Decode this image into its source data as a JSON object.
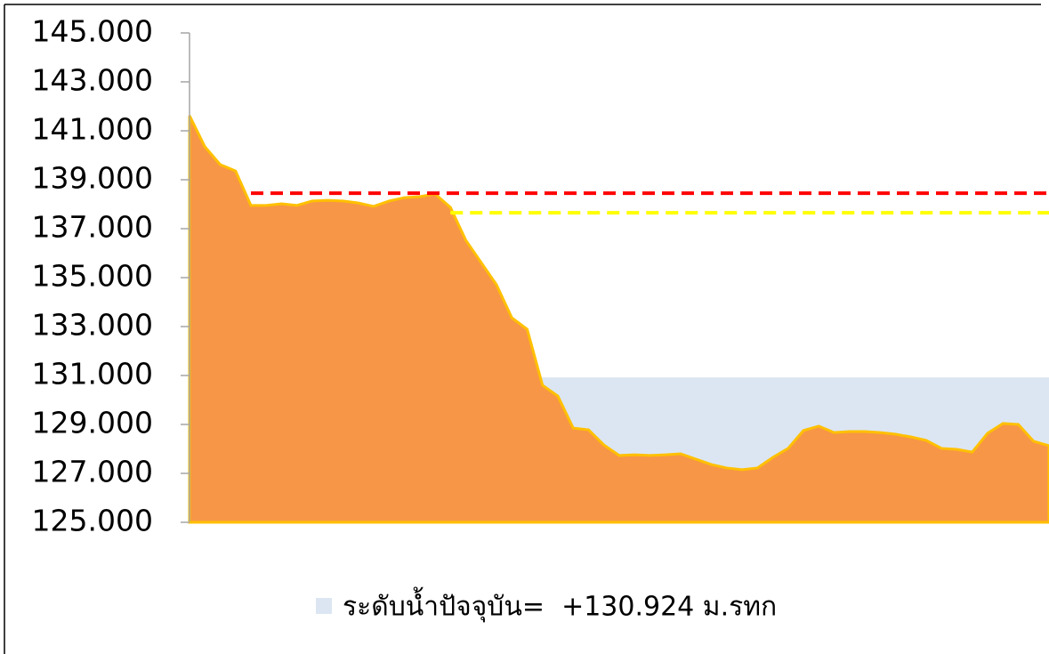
{
  "chart_data": {
    "type": "area",
    "ylim": [
      125,
      145
    ],
    "yticks": [
      {
        "value": 125,
        "label": "125.000"
      },
      {
        "value": 127,
        "label": "127.000"
      },
      {
        "value": 129,
        "label": "129.000"
      },
      {
        "value": 131,
        "label": "131.000"
      },
      {
        "value": 133,
        "label": "133.000"
      },
      {
        "value": 135,
        "label": "135.000"
      },
      {
        "value": 137,
        "label": "137.000"
      },
      {
        "value": 139,
        "label": "139.000"
      },
      {
        "value": 141,
        "label": "141.000"
      },
      {
        "value": 143,
        "label": "143.000"
      },
      {
        "value": 145,
        "label": "145.000"
      }
    ],
    "categories": [
      null,
      null,
      null,
      null,
      null,
      null,
      null,
      null,
      null,
      null,
      null,
      null,
      null,
      null,
      null,
      null,
      null,
      null,
      null,
      null,
      null,
      null,
      null,
      null,
      null,
      null,
      null,
      null,
      null,
      null,
      null,
      null,
      null,
      null,
      null,
      null,
      null,
      null,
      null,
      null,
      null,
      null,
      null,
      null,
      null,
      null,
      null,
      null,
      null,
      null,
      null,
      null,
      null,
      null,
      null,
      null,
      null
    ],
    "legend": "bottom",
    "series": [
      {
        "name": "ระดับน้ำปัจจุบัน=  +130.924 ม.รทก",
        "color": "#dce6f2",
        "style": "area",
        "values": [
          130.924,
          130.924,
          130.924,
          130.924,
          130.924,
          130.924,
          130.924,
          130.924,
          130.924,
          130.924,
          130.924,
          130.924,
          130.924,
          130.924,
          130.924,
          130.924,
          130.924,
          130.924,
          130.924,
          130.924,
          130.924,
          130.924,
          130.924,
          130.924,
          130.924,
          130.924,
          130.924,
          130.924,
          130.924,
          130.924,
          130.924,
          130.924,
          130.924,
          130.924,
          130.924,
          130.924,
          130.924,
          130.924,
          130.924,
          130.924,
          130.924,
          130.924,
          130.924,
          130.924,
          130.924,
          130.924,
          130.924,
          130.924,
          130.924,
          130.924,
          130.924,
          130.924,
          130.924,
          130.924,
          130.924,
          130.924,
          130.924
        ]
      },
      {
        "color": "#f79646",
        "edge_color": "#ffc000",
        "style": "area",
        "values": [
          141.62,
          140.35,
          139.62,
          139.36,
          137.95,
          137.95,
          138.02,
          137.95,
          138.13,
          138.16,
          138.13,
          138.05,
          137.91,
          138.13,
          138.27,
          138.31,
          138.42,
          137.87,
          136.53,
          135.62,
          134.71,
          133.36,
          132.89,
          130.6,
          130.16,
          128.85,
          128.78,
          128.16,
          127.73,
          127.76,
          127.73,
          127.76,
          127.8,
          127.58,
          127.36,
          127.22,
          127.15,
          127.22,
          127.65,
          128.02,
          128.75,
          128.93,
          128.67,
          128.71,
          128.71,
          128.67,
          128.6,
          128.49,
          128.35,
          128.02,
          127.98,
          127.87,
          128.64,
          129.04,
          129.0,
          128.31,
          128.13
        ]
      },
      {
        "color": "#ff0000",
        "style": "dashed",
        "values": [
          null,
          null,
          null,
          null,
          138.45,
          138.45,
          138.45,
          138.45,
          138.45,
          138.45,
          138.45,
          138.45,
          138.45,
          138.45,
          138.45,
          138.45,
          138.45,
          138.45,
          138.45,
          138.45,
          138.45,
          138.45,
          138.45,
          138.45,
          138.45,
          138.45,
          138.45,
          138.45,
          138.45,
          138.45,
          138.45,
          138.45,
          138.45,
          138.45,
          138.45,
          138.45,
          138.45,
          138.45,
          138.45,
          138.45,
          138.45,
          138.45,
          138.45,
          138.45,
          138.45,
          138.45,
          138.45,
          138.45,
          138.45,
          138.45,
          138.45,
          138.45,
          138.45,
          138.45,
          138.45,
          138.45,
          138.45
        ]
      },
      {
        "color": "#ffff00",
        "style": "dashed",
        "values": [
          null,
          null,
          null,
          null,
          null,
          null,
          null,
          null,
          null,
          null,
          null,
          null,
          null,
          null,
          null,
          null,
          null,
          137.65,
          137.65,
          137.65,
          137.65,
          137.65,
          137.65,
          137.65,
          137.65,
          137.65,
          137.65,
          137.65,
          137.65,
          137.65,
          137.65,
          137.65,
          137.65,
          137.65,
          137.65,
          137.65,
          137.65,
          137.65,
          137.65,
          137.65,
          137.65,
          137.65,
          137.65,
          137.65,
          137.65,
          137.65,
          137.65,
          137.65,
          137.65,
          137.65,
          137.65,
          137.65,
          137.65,
          137.65,
          137.65,
          137.65,
          137.65
        ]
      }
    ]
  }
}
